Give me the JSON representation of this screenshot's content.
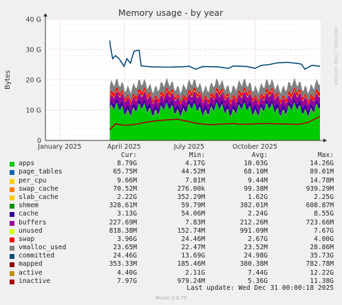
{
  "chart_data": {
    "type": "area",
    "title": "Memory usage - by year",
    "ylabel": "Bytes",
    "side_label": "RRDTOOL / TOBI OETIKER",
    "ylim": [
      0,
      40
    ],
    "y_unit": "G",
    "y_ticks": [
      {
        "value": 0,
        "label": "0"
      },
      {
        "value": 10,
        "label": "10 G"
      },
      {
        "value": 20,
        "label": "20 G"
      },
      {
        "value": 30,
        "label": "30 G"
      },
      {
        "value": 40,
        "label": "40 G"
      }
    ],
    "x_range": [
      "2024-12-12",
      "2026-01-01"
    ],
    "x_ticks": [
      {
        "date": "2025-01-01",
        "label": "January 2025"
      },
      {
        "date": "2025-04-01",
        "label": "April 2025"
      },
      {
        "date": "2025-07-01",
        "label": "July 2025"
      },
      {
        "date": "2025-10-01",
        "label": "October 2025"
      }
    ],
    "data_start": "2025-03-12",
    "stacked_bands_G": [
      {
        "name": "apps",
        "color": "#00cc00",
        "avg": 10.03
      },
      {
        "name": "page_tables",
        "color": "#0066b3",
        "avg": 0.07
      },
      {
        "name": "per_cpu",
        "color": "#ff8000",
        "avg": 0.01
      },
      {
        "name": "swap_cache",
        "color": "#ffcc00",
        "avg": 0.1
      },
      {
        "name": "slab_cache",
        "color": "#330099",
        "avg": 1.62
      },
      {
        "name": "cache",
        "color": "#990099",
        "avg": 2.24
      },
      {
        "name": "buffers",
        "color": "#ccff00",
        "avg": 0.21
      },
      {
        "name": "unused",
        "color": "#ff0000",
        "avg": 0.99
      },
      {
        "name": "swap",
        "color": "#808080",
        "avg": 2.67
      }
    ],
    "lines_G": [
      {
        "name": "committed",
        "color": "#004a79",
        "values": [
          [
            "2025-03-12",
            33
          ],
          [
            "2025-03-13",
            31
          ],
          [
            "2025-03-16",
            27
          ],
          [
            "2025-03-20",
            28
          ],
          [
            "2025-03-25",
            27
          ],
          [
            "2025-04-01",
            24.5
          ],
          [
            "2025-04-05",
            27
          ],
          [
            "2025-04-10",
            25.5
          ],
          [
            "2025-04-15",
            29.5
          ],
          [
            "2025-04-22",
            29.8
          ],
          [
            "2025-04-25",
            24.6
          ],
          [
            "2025-05-10",
            24.3
          ],
          [
            "2025-06-01",
            24.2
          ],
          [
            "2025-06-20",
            24.3
          ],
          [
            "2025-07-01",
            24.5
          ],
          [
            "2025-07-10",
            23.5
          ],
          [
            "2025-07-20",
            24.4
          ],
          [
            "2025-08-10",
            24.3
          ],
          [
            "2025-08-25",
            23.8
          ],
          [
            "2025-09-01",
            24.6
          ],
          [
            "2025-09-20",
            24.4
          ],
          [
            "2025-10-01",
            23.8
          ],
          [
            "2025-10-10",
            24.8
          ],
          [
            "2025-10-20",
            25
          ],
          [
            "2025-11-01",
            25.6
          ],
          [
            "2025-11-15",
            25.8
          ],
          [
            "2025-11-30",
            25.4
          ],
          [
            "2025-12-05",
            25.2
          ],
          [
            "2025-12-10",
            23.5
          ],
          [
            "2025-12-15",
            24.2
          ],
          [
            "2025-12-20",
            24.8
          ],
          [
            "2025-12-31",
            24.5
          ]
        ]
      },
      {
        "name": "inactive",
        "color": "#aa0000",
        "values": [
          [
            "2025-03-12",
            3.5
          ],
          [
            "2025-03-20",
            5.5
          ],
          [
            "2025-04-01",
            5
          ],
          [
            "2025-04-15",
            5.2
          ],
          [
            "2025-05-01",
            6
          ],
          [
            "2025-05-15",
            6.5
          ],
          [
            "2025-06-01",
            6.8
          ],
          [
            "2025-06-15",
            7
          ],
          [
            "2025-07-01",
            6.2
          ],
          [
            "2025-07-15",
            5.5
          ],
          [
            "2025-08-01",
            5.2
          ],
          [
            "2025-08-15",
            5.4
          ],
          [
            "2025-09-01",
            5.6
          ],
          [
            "2025-09-15",
            5.3
          ],
          [
            "2025-10-01",
            5.5
          ],
          [
            "2025-10-15",
            5.6
          ],
          [
            "2025-11-01",
            5.5
          ],
          [
            "2025-11-15",
            5.4
          ],
          [
            "2025-12-01",
            5.3
          ],
          [
            "2025-12-15",
            6
          ],
          [
            "2025-12-31",
            7.97
          ]
        ]
      }
    ],
    "legend": {
      "headers": {
        "cur": "Cur:",
        "min": "Min:",
        "avg": "Avg:",
        "max": "Max:"
      },
      "rows": [
        {
          "name": "apps",
          "color": "#00cc00",
          "cur": "8.79G",
          "min": "4.17G",
          "avg": "10.03G",
          "max": "14.26G"
        },
        {
          "name": "page_tables",
          "color": "#0066b3",
          "cur": "65.75M",
          "min": "44.52M",
          "avg": "68.10M",
          "max": "89.01M"
        },
        {
          "name": "per_cpu",
          "color": "#ffcc00",
          "cur": "9.66M",
          "min": "7.81M",
          "avg": "9.44M",
          "max": "14.78M"
        },
        {
          "name": "swap_cache",
          "color": "#ff8000",
          "cur": "70.52M",
          "min": "276.00k",
          "avg": "99.38M",
          "max": "939.29M"
        },
        {
          "name": "slab_cache",
          "color": "#ffcc00",
          "cur": "2.22G",
          "min": "352.29M",
          "avg": "1.62G",
          "max": "2.25G"
        },
        {
          "name": "shmem",
          "color": "#008f00",
          "cur": "328.61M",
          "min": "59.79M",
          "avg": "382.01M",
          "max": "608.87M"
        },
        {
          "name": "cache",
          "color": "#330099",
          "cur": "3.13G",
          "min": "54.06M",
          "avg": "2.24G",
          "max": "8.55G"
        },
        {
          "name": "buffers",
          "color": "#990099",
          "cur": "227.69M",
          "min": "7.83M",
          "avg": "212.26M",
          "max": "723.66M"
        },
        {
          "name": "unused",
          "color": "#ccff00",
          "cur": "818.38M",
          "min": "152.74M",
          "avg": "991.09M",
          "max": "7.67G"
        },
        {
          "name": "swap",
          "color": "#ff0000",
          "cur": "3.96G",
          "min": "24.46M",
          "avg": "2.67G",
          "max": "4.00G"
        },
        {
          "name": "vmalloc_used",
          "color": "#808080",
          "cur": "23.65M",
          "min": "22.47M",
          "avg": "23.52M",
          "max": "28.86M"
        },
        {
          "name": "committed",
          "color": "#004a79",
          "cur": "24.46G",
          "min": "13.69G",
          "avg": "24.98G",
          "max": "35.73G"
        },
        {
          "name": "mapped",
          "color": "#8f0000",
          "cur": "353.33M",
          "min": "185.46M",
          "avg": "380.38M",
          "max": "782.78M"
        },
        {
          "name": "active",
          "color": "#c09000",
          "cur": "4.40G",
          "min": "2.11G",
          "avg": "7.44G",
          "max": "12.22G"
        },
        {
          "name": "inactive",
          "color": "#aa0000",
          "cur": "7.97G",
          "min": "979.24M",
          "avg": "5.36G",
          "max": "11.38G"
        }
      ]
    },
    "last_update": "Last update:  Wed Dec 31 00:00:18 2025",
    "footer": "Munin 2.0.75"
  }
}
